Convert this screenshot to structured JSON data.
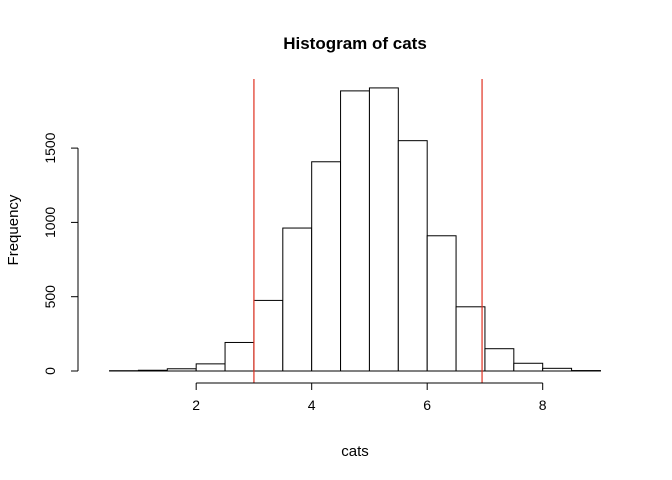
{
  "chart_data": {
    "type": "bar",
    "title": "Histogram of cats",
    "xlabel": "cats",
    "ylabel": "Frequency",
    "bins": [
      {
        "start": 0.5,
        "end": 1.0,
        "count": 2
      },
      {
        "start": 1.0,
        "end": 1.5,
        "count": 5
      },
      {
        "start": 1.5,
        "end": 2.0,
        "count": 15
      },
      {
        "start": 2.0,
        "end": 2.5,
        "count": 48
      },
      {
        "start": 2.5,
        "end": 3.0,
        "count": 192
      },
      {
        "start": 3.0,
        "end": 3.5,
        "count": 475
      },
      {
        "start": 3.5,
        "end": 4.0,
        "count": 962
      },
      {
        "start": 4.0,
        "end": 4.5,
        "count": 1408
      },
      {
        "start": 4.5,
        "end": 5.0,
        "count": 1885
      },
      {
        "start": 5.0,
        "end": 5.5,
        "count": 1905
      },
      {
        "start": 5.5,
        "end": 6.0,
        "count": 1550
      },
      {
        "start": 6.0,
        "end": 6.5,
        "count": 910
      },
      {
        "start": 6.5,
        "end": 7.0,
        "count": 432
      },
      {
        "start": 7.0,
        "end": 7.5,
        "count": 150
      },
      {
        "start": 7.5,
        "end": 8.0,
        "count": 52
      },
      {
        "start": 8.0,
        "end": 8.5,
        "count": 18
      },
      {
        "start": 8.5,
        "end": 9.0,
        "count": 3
      }
    ],
    "xlim": [
      0.3,
      9.2
    ],
    "ylim": [
      0,
      1965
    ],
    "x_ticks": [
      {
        "value": 2,
        "label": "2"
      },
      {
        "value": 4,
        "label": "4"
      },
      {
        "value": 6,
        "label": "6"
      },
      {
        "value": 8,
        "label": "8"
      }
    ],
    "x_axis_range": [
      2,
      8
    ],
    "y_ticks": [
      {
        "value": 0,
        "label": "0"
      },
      {
        "value": 500,
        "label": "500"
      },
      {
        "value": 1000,
        "label": "1000"
      },
      {
        "value": 1500,
        "label": "1500"
      }
    ],
    "y_axis_range": [
      0,
      1500
    ],
    "reference_lines": [
      {
        "x": 3.0,
        "color": "#e03020"
      },
      {
        "x": 6.95,
        "color": "#e03020"
      }
    ],
    "bar_fill": "#ffffff",
    "bar_stroke": "#000000",
    "grid": false
  }
}
